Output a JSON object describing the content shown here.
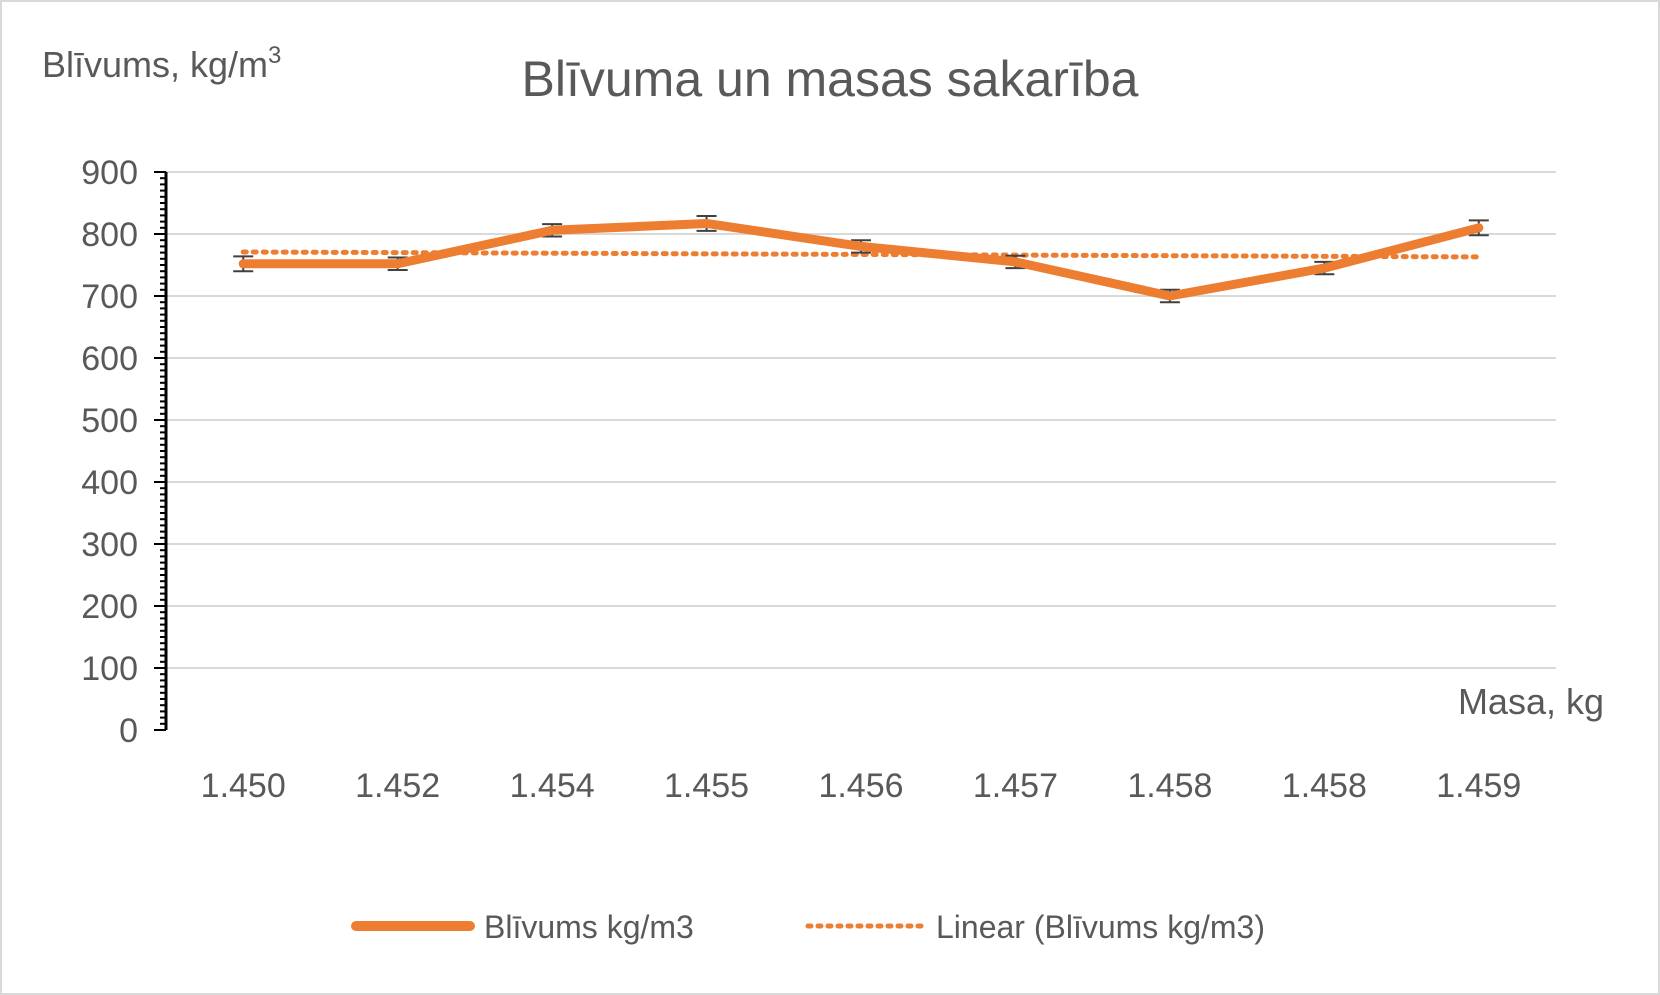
{
  "chart_data": {
    "type": "line",
    "title": "Blīvuma un masas sakarība",
    "ylabel_main": "Blīvums, kg/m",
    "ylabel_sup": "3",
    "xlabel": "Masa, kg",
    "categories": [
      "1.450",
      "1.452",
      "1.454",
      "1.455",
      "1.456",
      "1.457",
      "1.458",
      "1.458",
      "1.459"
    ],
    "ylim": [
      0,
      900
    ],
    "yticks": [
      0,
      100,
      200,
      300,
      400,
      500,
      600,
      700,
      800,
      900
    ],
    "grid": true,
    "legend_position": "bottom",
    "series": [
      {
        "name": "Blīvums kg/m3",
        "values": [
          752,
          752,
          806,
          817,
          780,
          755,
          700,
          745,
          810
        ],
        "error": [
          12,
          10,
          10,
          12,
          10,
          10,
          10,
          10,
          12
        ],
        "color": "#ed7d31",
        "style": "solid"
      },
      {
        "name": "Linear (Blīvums kg/m3)",
        "values": [
          771,
          770,
          769,
          768,
          767,
          766,
          765,
          764,
          763
        ],
        "color": "#ed7d31",
        "style": "dotted"
      }
    ],
    "colors": {
      "grid": "#d9d9d9",
      "axis": "#000000",
      "text": "#595959",
      "errorbar": "#404040"
    }
  }
}
